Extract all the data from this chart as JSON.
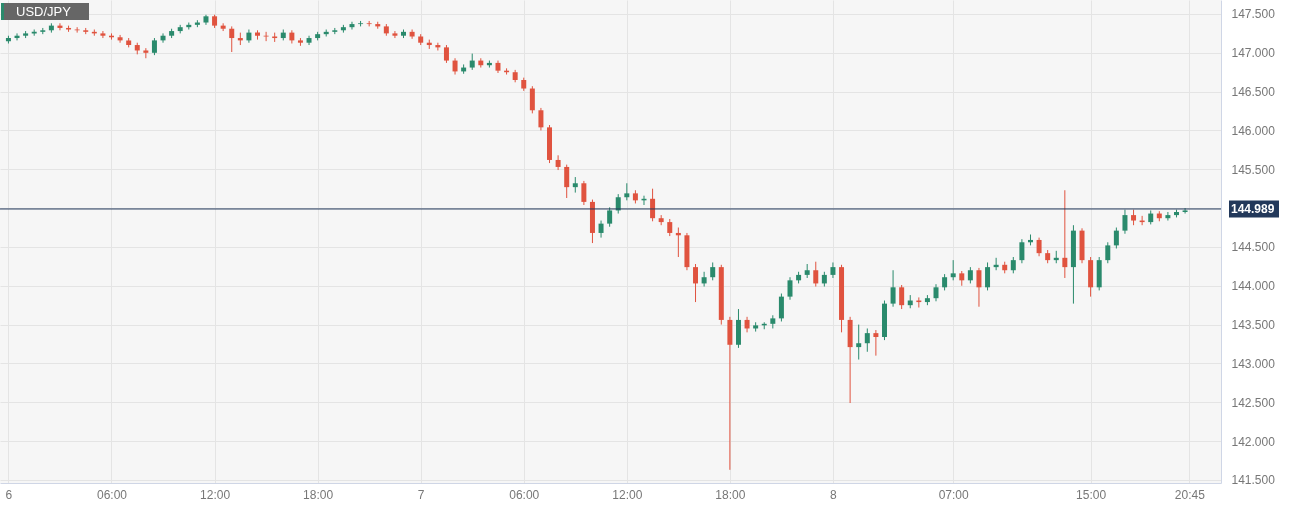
{
  "chart_data": {
    "type": "candlestick",
    "title": "USD/JPY",
    "x": [
      "--12-06T00:00",
      "--12-06T00:30",
      "--12-06T01:00",
      "--12-06T01:30",
      "--12-06T02:00",
      "--12-06T02:30",
      "--12-06T03:00",
      "--12-06T03:30",
      "--12-06T04:00",
      "--12-06T04:30",
      "--12-06T05:00",
      "--12-06T05:30",
      "--12-06T06:00",
      "--12-06T06:30",
      "--12-06T07:00",
      "--12-06T07:30",
      "--12-06T08:00",
      "--12-06T08:30",
      "--12-06T09:00",
      "--12-06T09:30",
      "--12-06T10:00",
      "--12-06T10:30",
      "--12-06T11:00",
      "--12-06T11:30",
      "--12-06T12:00",
      "--12-06T12:30",
      "--12-06T13:00",
      "--12-06T13:30",
      "--12-06T14:00",
      "--12-06T14:30",
      "--12-06T15:00",
      "--12-06T15:30",
      "--12-06T16:00",
      "--12-06T16:30",
      "--12-06T17:00",
      "--12-06T17:30",
      "--12-06T18:00",
      "--12-06T18:30",
      "--12-06T19:00",
      "--12-06T19:30",
      "--12-06T20:00",
      "--12-06T20:30",
      "--12-06T21:00",
      "--12-06T21:30",
      "--12-06T22:00",
      "--12-06T22:30",
      "--12-06T23:00",
      "--12-06T23:30",
      "--12-07T00:00",
      "--12-07T00:30",
      "--12-07T01:00",
      "--12-07T01:30",
      "--12-07T02:00",
      "--12-07T02:30",
      "--12-07T03:00",
      "--12-07T03:30",
      "--12-07T04:00",
      "--12-07T04:30",
      "--12-07T05:00",
      "--12-07T05:30",
      "--12-07T06:00",
      "--12-07T06:30",
      "--12-07T07:00",
      "--12-07T07:30",
      "--12-07T08:00",
      "--12-07T08:30",
      "--12-07T09:00",
      "--12-07T09:30",
      "--12-07T10:00",
      "--12-07T10:30",
      "--12-07T11:00",
      "--12-07T11:30",
      "--12-07T12:00",
      "--12-07T12:30",
      "--12-07T13:00",
      "--12-07T13:30",
      "--12-07T14:00",
      "--12-07T14:30",
      "--12-07T15:00",
      "--12-07T15:30",
      "--12-07T16:00",
      "--12-07T16:30",
      "--12-07T17:00",
      "--12-07T17:30",
      "--12-07T18:00",
      "--12-07T18:30",
      "--12-07T19:00",
      "--12-07T19:30",
      "--12-07T20:00",
      "--12-07T20:30",
      "--12-07T21:00",
      "--12-07T21:30",
      "--12-07T22:00",
      "--12-07T22:30",
      "--12-07T23:00",
      "--12-07T23:30",
      "--12-08T00:00",
      "--12-08T00:30",
      "--12-08T01:00",
      "--12-08T01:30",
      "--12-08T02:00",
      "--12-08T02:30",
      "--12-08T03:00",
      "--12-08T03:30",
      "--12-08T04:00",
      "--12-08T04:30",
      "--12-08T05:00",
      "--12-08T05:30",
      "--12-08T06:00",
      "--12-08T06:30",
      "--12-08T07:00",
      "--12-08T07:30",
      "--12-08T08:00",
      "--12-08T08:30",
      "--12-08T09:00",
      "--12-08T09:30",
      "--12-08T10:00",
      "--12-08T10:30",
      "--12-08T11:00",
      "--12-08T11:30",
      "--12-08T12:00",
      "--12-08T12:30",
      "--12-08T13:00",
      "--12-08T13:30",
      "--12-08T14:00",
      "--12-08T14:30",
      "--12-08T15:00",
      "--12-08T15:30",
      "--12-08T16:00",
      "--12-08T16:30",
      "--12-08T17:00",
      "--12-08T17:30",
      "--12-08T18:00",
      "--12-08T18:30",
      "--12-08T19:00",
      "--12-08T19:30",
      "--12-08T20:00",
      "--12-08T20:30"
    ],
    "ohlc": [
      [
        147.15,
        147.22,
        147.12,
        147.19
      ],
      [
        147.19,
        147.25,
        147.16,
        147.22
      ],
      [
        147.22,
        147.28,
        147.19,
        147.25
      ],
      [
        147.25,
        147.3,
        147.22,
        147.27
      ],
      [
        147.27,
        147.32,
        147.24,
        147.29
      ],
      [
        147.29,
        147.38,
        147.26,
        147.35
      ],
      [
        147.35,
        147.38,
        147.29,
        147.32
      ],
      [
        147.32,
        147.35,
        147.27,
        147.3
      ],
      [
        147.3,
        147.33,
        147.26,
        147.29
      ],
      [
        147.29,
        147.32,
        147.24,
        147.27
      ],
      [
        147.27,
        147.3,
        147.22,
        147.25
      ],
      [
        147.25,
        147.28,
        147.19,
        147.22
      ],
      [
        147.22,
        147.25,
        147.17,
        147.2
      ],
      [
        147.2,
        147.23,
        147.13,
        147.16
      ],
      [
        147.16,
        147.19,
        147.07,
        147.1
      ],
      [
        147.1,
        147.13,
        146.98,
        147.03
      ],
      [
        147.03,
        147.06,
        146.93,
        147.0
      ],
      [
        147.0,
        147.19,
        146.97,
        147.16
      ],
      [
        147.16,
        147.25,
        147.13,
        147.22
      ],
      [
        147.22,
        147.31,
        147.19,
        147.28
      ],
      [
        147.28,
        147.36,
        147.25,
        147.33
      ],
      [
        147.33,
        147.39,
        147.3,
        147.36
      ],
      [
        147.36,
        147.42,
        147.33,
        147.39
      ],
      [
        147.39,
        147.49,
        147.36,
        147.47
      ],
      [
        147.47,
        147.49,
        147.32,
        147.35
      ],
      [
        147.35,
        147.38,
        147.28,
        147.31
      ],
      [
        147.31,
        147.34,
        147.01,
        147.19
      ],
      [
        147.19,
        147.26,
        147.1,
        147.16
      ],
      [
        147.16,
        147.3,
        147.13,
        147.26
      ],
      [
        147.26,
        147.29,
        147.17,
        147.22
      ],
      [
        147.22,
        147.27,
        147.15,
        147.21
      ],
      [
        147.21,
        147.26,
        147.14,
        147.19
      ],
      [
        147.19,
        147.3,
        147.16,
        147.26
      ],
      [
        147.26,
        147.29,
        147.12,
        147.16
      ],
      [
        147.16,
        147.19,
        147.09,
        147.13
      ],
      [
        147.13,
        147.22,
        147.1,
        147.19
      ],
      [
        147.19,
        147.27,
        147.16,
        147.24
      ],
      [
        147.24,
        147.3,
        147.21,
        147.27
      ],
      [
        147.27,
        147.32,
        147.24,
        147.29
      ],
      [
        147.29,
        147.36,
        147.26,
        147.33
      ],
      [
        147.33,
        147.4,
        147.3,
        147.37
      ],
      [
        147.37,
        147.41,
        147.34,
        147.38
      ],
      [
        147.38,
        147.41,
        147.34,
        147.37
      ],
      [
        147.37,
        147.4,
        147.31,
        147.34
      ],
      [
        147.34,
        147.37,
        147.22,
        147.25
      ],
      [
        147.25,
        147.28,
        147.19,
        147.22
      ],
      [
        147.22,
        147.3,
        147.19,
        147.27
      ],
      [
        147.27,
        147.3,
        147.18,
        147.21
      ],
      [
        147.21,
        147.24,
        147.1,
        147.13
      ],
      [
        147.13,
        147.17,
        147.05,
        147.1
      ],
      [
        147.1,
        147.13,
        147.03,
        147.07
      ],
      [
        147.07,
        147.1,
        146.87,
        146.9
      ],
      [
        146.9,
        146.93,
        146.72,
        146.76
      ],
      [
        146.76,
        146.85,
        146.73,
        146.81
      ],
      [
        146.81,
        146.99,
        146.78,
        146.9
      ],
      [
        146.9,
        146.93,
        146.81,
        146.84
      ],
      [
        146.84,
        146.9,
        146.81,
        146.87
      ],
      [
        146.87,
        146.9,
        146.74,
        146.77
      ],
      [
        146.77,
        146.8,
        146.72,
        146.75
      ],
      [
        146.75,
        146.78,
        146.62,
        146.65
      ],
      [
        146.65,
        146.68,
        146.51,
        146.54
      ],
      [
        146.54,
        146.57,
        146.22,
        146.26
      ],
      [
        146.26,
        146.29,
        146.0,
        146.04
      ],
      [
        146.04,
        146.07,
        145.58,
        145.62
      ],
      [
        145.62,
        145.68,
        145.49,
        145.53
      ],
      [
        145.53,
        145.56,
        145.13,
        145.27
      ],
      [
        145.27,
        145.4,
        145.2,
        145.32
      ],
      [
        145.32,
        145.35,
        145.04,
        145.08
      ],
      [
        145.08,
        145.11,
        144.55,
        144.68
      ],
      [
        144.68,
        144.84,
        144.62,
        144.8
      ],
      [
        144.8,
        145.01,
        144.76,
        144.97
      ],
      [
        144.97,
        145.18,
        144.93,
        145.14
      ],
      [
        145.14,
        145.32,
        145.1,
        145.19
      ],
      [
        145.19,
        145.23,
        145.06,
        145.1
      ],
      [
        145.1,
        145.16,
        145.04,
        145.12
      ],
      [
        145.12,
        145.25,
        144.83,
        144.87
      ],
      [
        144.87,
        144.91,
        144.78,
        144.82
      ],
      [
        144.82,
        144.86,
        144.64,
        144.68
      ],
      [
        144.68,
        144.75,
        144.37,
        144.65
      ],
      [
        144.65,
        144.68,
        144.2,
        144.24
      ],
      [
        144.24,
        144.28,
        143.79,
        144.03
      ],
      [
        144.03,
        144.18,
        143.99,
        144.11
      ],
      [
        144.11,
        144.3,
        144.07,
        144.24
      ],
      [
        144.24,
        144.27,
        143.5,
        143.56
      ],
      [
        143.56,
        143.6,
        141.63,
        143.24
      ],
      [
        143.24,
        143.7,
        143.2,
        143.56
      ],
      [
        143.56,
        143.6,
        143.4,
        143.45
      ],
      [
        143.45,
        143.53,
        143.41,
        143.49
      ],
      [
        143.49,
        143.53,
        143.44,
        143.51
      ],
      [
        143.51,
        143.62,
        143.45,
        143.58
      ],
      [
        143.58,
        143.9,
        143.54,
        143.86
      ],
      [
        143.86,
        144.11,
        143.82,
        144.07
      ],
      [
        144.07,
        144.18,
        144.03,
        144.14
      ],
      [
        144.14,
        144.28,
        144.1,
        144.2
      ],
      [
        144.2,
        144.31,
        143.99,
        144.03
      ],
      [
        144.03,
        144.18,
        143.99,
        144.14
      ],
      [
        144.14,
        144.3,
        144.1,
        144.24
      ],
      [
        144.24,
        144.27,
        143.4,
        143.56
      ],
      [
        143.56,
        143.6,
        142.49,
        143.21
      ],
      [
        143.21,
        143.5,
        143.05,
        143.26
      ],
      [
        143.26,
        143.45,
        143.15,
        143.39
      ],
      [
        143.39,
        143.43,
        143.1,
        143.34
      ],
      [
        143.34,
        143.81,
        143.3,
        143.77
      ],
      [
        143.77,
        144.2,
        143.73,
        143.98
      ],
      [
        143.98,
        144.01,
        143.7,
        143.75
      ],
      [
        143.75,
        143.88,
        143.71,
        143.81
      ],
      [
        143.81,
        143.85,
        143.72,
        143.79
      ],
      [
        143.79,
        143.88,
        143.75,
        143.84
      ],
      [
        143.84,
        144.02,
        143.8,
        143.98
      ],
      [
        143.98,
        144.15,
        143.94,
        144.11
      ],
      [
        144.11,
        144.33,
        144.07,
        144.16
      ],
      [
        144.16,
        144.19,
        144.0,
        144.07
      ],
      [
        144.07,
        144.24,
        144.03,
        144.2
      ],
      [
        144.2,
        144.23,
        143.73,
        143.98
      ],
      [
        143.98,
        144.3,
        143.94,
        144.24
      ],
      [
        144.24,
        144.36,
        144.2,
        144.27
      ],
      [
        144.27,
        144.31,
        144.16,
        144.2
      ],
      [
        144.2,
        144.37,
        144.16,
        144.33
      ],
      [
        144.33,
        144.6,
        144.29,
        144.56
      ],
      [
        144.56,
        144.66,
        144.52,
        144.59
      ],
      [
        144.59,
        144.62,
        144.38,
        144.42
      ],
      [
        144.42,
        144.46,
        144.29,
        144.33
      ],
      [
        144.33,
        144.45,
        144.29,
        144.36
      ],
      [
        144.36,
        145.23,
        144.1,
        144.24
      ],
      [
        144.24,
        144.78,
        143.77,
        144.71
      ],
      [
        144.71,
        144.74,
        144.29,
        144.33
      ],
      [
        144.33,
        144.37,
        143.86,
        143.98
      ],
      [
        143.98,
        144.37,
        143.94,
        144.33
      ],
      [
        144.33,
        144.56,
        144.29,
        144.52
      ],
      [
        144.52,
        144.75,
        144.48,
        144.71
      ],
      [
        144.71,
        144.98,
        144.67,
        144.91
      ],
      [
        144.91,
        144.98,
        144.78,
        144.84
      ],
      [
        144.84,
        144.9,
        144.78,
        144.82
      ],
      [
        144.82,
        144.97,
        144.79,
        144.93
      ],
      [
        144.93,
        144.96,
        144.83,
        144.87
      ],
      [
        144.87,
        144.95,
        144.84,
        144.91
      ],
      [
        144.91,
        144.98,
        144.88,
        144.95
      ],
      [
        144.95,
        145.0,
        144.93,
        144.97
      ]
    ],
    "colors": [
      "#2a8a6c",
      "#2a8a6c",
      "#2a8a6c",
      "#2a8a6c",
      "#2a8a6c",
      "#2a8a6c",
      "#e0533f",
      "#e0533f",
      "#e0533f",
      "#e0533f",
      "#e0533f",
      "#e0533f",
      "#e0533f",
      "#e0533f",
      "#e0533f",
      "#e0533f",
      "#e0533f",
      "#2a8a6c",
      "#2a8a6c",
      "#2a8a6c",
      "#2a8a6c",
      "#2a8a6c",
      "#2a8a6c",
      "#2a8a6c",
      "#e0533f",
      "#e0533f",
      "#e0533f",
      "#e0533f",
      "#2a8a6c",
      "#e0533f",
      "#e0533f",
      "#e0533f",
      "#2a8a6c",
      "#e0533f",
      "#e0533f",
      "#2a8a6c",
      "#2a8a6c",
      "#2a8a6c",
      "#2a8a6c",
      "#2a8a6c",
      "#2a8a6c",
      "#2a8a6c",
      "#e0533f",
      "#e0533f",
      "#e0533f",
      "#e0533f",
      "#2a8a6c",
      "#e0533f",
      "#e0533f",
      "#e0533f",
      "#e0533f",
      "#e0533f",
      "#e0533f",
      "#2a8a6c",
      "#2a8a6c",
      "#e0533f",
      "#2a8a6c",
      "#e0533f",
      "#e0533f",
      "#e0533f",
      "#e0533f",
      "#e0533f",
      "#e0533f",
      "#e0533f",
      "#e0533f",
      "#e0533f",
      "#2a8a6c",
      "#e0533f",
      "#e0533f",
      "#2a8a6c",
      "#2a8a6c",
      "#2a8a6c",
      "#2a8a6c",
      "#e0533f",
      "#2a8a6c",
      "#e0533f",
      "#e0533f",
      "#e0533f",
      "#e0533f",
      "#e0533f",
      "#e0533f",
      "#2a8a6c",
      "#2a8a6c",
      "#e0533f",
      "#e0533f",
      "#2a8a6c",
      "#e0533f",
      "#2a8a6c",
      "#2a8a6c",
      "#2a8a6c",
      "#2a8a6c",
      "#2a8a6c",
      "#2a8a6c",
      "#2a8a6c",
      "#e0533f",
      "#2a8a6c",
      "#2a8a6c",
      "#e0533f",
      "#e0533f",
      "#2a8a6c",
      "#2a8a6c",
      "#e0533f",
      "#2a8a6c",
      "#2a8a6c",
      "#e0533f",
      "#2a8a6c",
      "#e0533f",
      "#2a8a6c",
      "#2a8a6c",
      "#2a8a6c",
      "#2a8a6c",
      "#e0533f",
      "#2a8a6c",
      "#e0533f",
      "#2a8a6c",
      "#2a8a6c",
      "#e0533f",
      "#2a8a6c",
      "#2a8a6c",
      "#2a8a6c",
      "#e0533f",
      "#e0533f",
      "#2a8a6c",
      "#e0533f",
      "#2a8a6c",
      "#e0533f",
      "#e0533f",
      "#2a8a6c",
      "#2a8a6c",
      "#2a8a6c",
      "#2a8a6c",
      "#e0533f",
      "#e0533f",
      "#2a8a6c",
      "#e0533f",
      "#2a8a6c",
      "#2a8a6c",
      "#2a8a6c"
    ],
    "xlim": [
      "--12-05T23:48",
      "--12-08T22:18"
    ],
    "xticks": [
      {
        "value": "--12-06T00:00",
        "label": "6"
      },
      {
        "value": "--12-06T06:00",
        "label": "06:00"
      },
      {
        "value": "--12-06T12:00",
        "label": "12:00"
      },
      {
        "value": "--12-06T18:00",
        "label": "18:00"
      },
      {
        "value": "--12-07T00:00",
        "label": "7"
      },
      {
        "value": "--12-07T06:00",
        "label": "06:00"
      },
      {
        "value": "--12-07T12:00",
        "label": "12:00"
      },
      {
        "value": "--12-07T18:00",
        "label": "18:00"
      },
      {
        "value": "--12-08T00:00",
        "label": "8"
      },
      {
        "value": "--12-08T07:00",
        "label": "07:00"
      },
      {
        "value": "--12-08T15:00",
        "label": "15:00"
      },
      {
        "value": "--12-08T20:45",
        "label": "20:45"
      }
    ],
    "ylim": [
      141.46,
      147.68
    ],
    "yticks": [
      {
        "value": 141.5,
        "label": "141.500"
      },
      {
        "value": 142,
        "label": "142.000"
      },
      {
        "value": 142.5,
        "label": "142.500"
      },
      {
        "value": 143,
        "label": "143.000"
      },
      {
        "value": 143.5,
        "label": "143.500"
      },
      {
        "value": 144,
        "label": "144.000"
      },
      {
        "value": 144.5,
        "label": "144.500"
      },
      {
        "value": 145,
        "label": null
      },
      {
        "value": 145.5,
        "label": "145.500"
      },
      {
        "value": 146,
        "label": "146.000"
      },
      {
        "value": 146.5,
        "label": "146.500"
      },
      {
        "value": 147,
        "label": "147.000"
      },
      {
        "value": 147.5,
        "label": "147.500"
      }
    ],
    "ref_lines": [
      {
        "axis": "y",
        "value": 144.989,
        "label": "144.989",
        "color": "#22385a"
      }
    ],
    "grid": true
  }
}
